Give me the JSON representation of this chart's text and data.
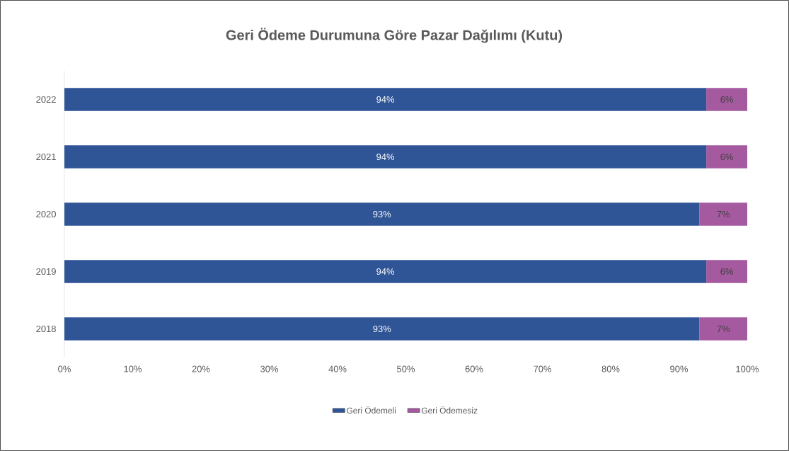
{
  "chart_data": {
    "type": "bar",
    "orientation": "horizontal",
    "stacked": true,
    "title": "Geri Ödeme Durumuna Göre Pazar Dağılımı (Kutu)",
    "categories": [
      "2022",
      "2021",
      "2020",
      "2019",
      "2018"
    ],
    "series": [
      {
        "name": "Geri Ödemeli",
        "color": "#2f5597",
        "values": [
          94,
          94,
          93,
          94,
          93
        ],
        "value_labels": [
          "94%",
          "94%",
          "93%",
          "94%",
          "93%"
        ]
      },
      {
        "name": "Geri Ödemesiz",
        "color": "#a55aa0",
        "values": [
          6,
          6,
          7,
          6,
          7
        ],
        "value_labels": [
          "6%",
          "6%",
          "7%",
          "6%",
          "7%"
        ]
      }
    ],
    "xlim": [
      0,
      100
    ],
    "xticks": [
      {
        "value": 0,
        "label": "0%"
      },
      {
        "value": 10,
        "label": "10%"
      },
      {
        "value": 20,
        "label": "20%"
      },
      {
        "value": 30,
        "label": "30%"
      },
      {
        "value": 40,
        "label": "40%"
      },
      {
        "value": 50,
        "label": "50%"
      },
      {
        "value": 60,
        "label": "60%"
      },
      {
        "value": 70,
        "label": "70%"
      },
      {
        "value": 80,
        "label": "80%"
      },
      {
        "value": 90,
        "label": "90%"
      },
      {
        "value": 100,
        "label": "100%"
      }
    ],
    "legend": "bottom"
  }
}
